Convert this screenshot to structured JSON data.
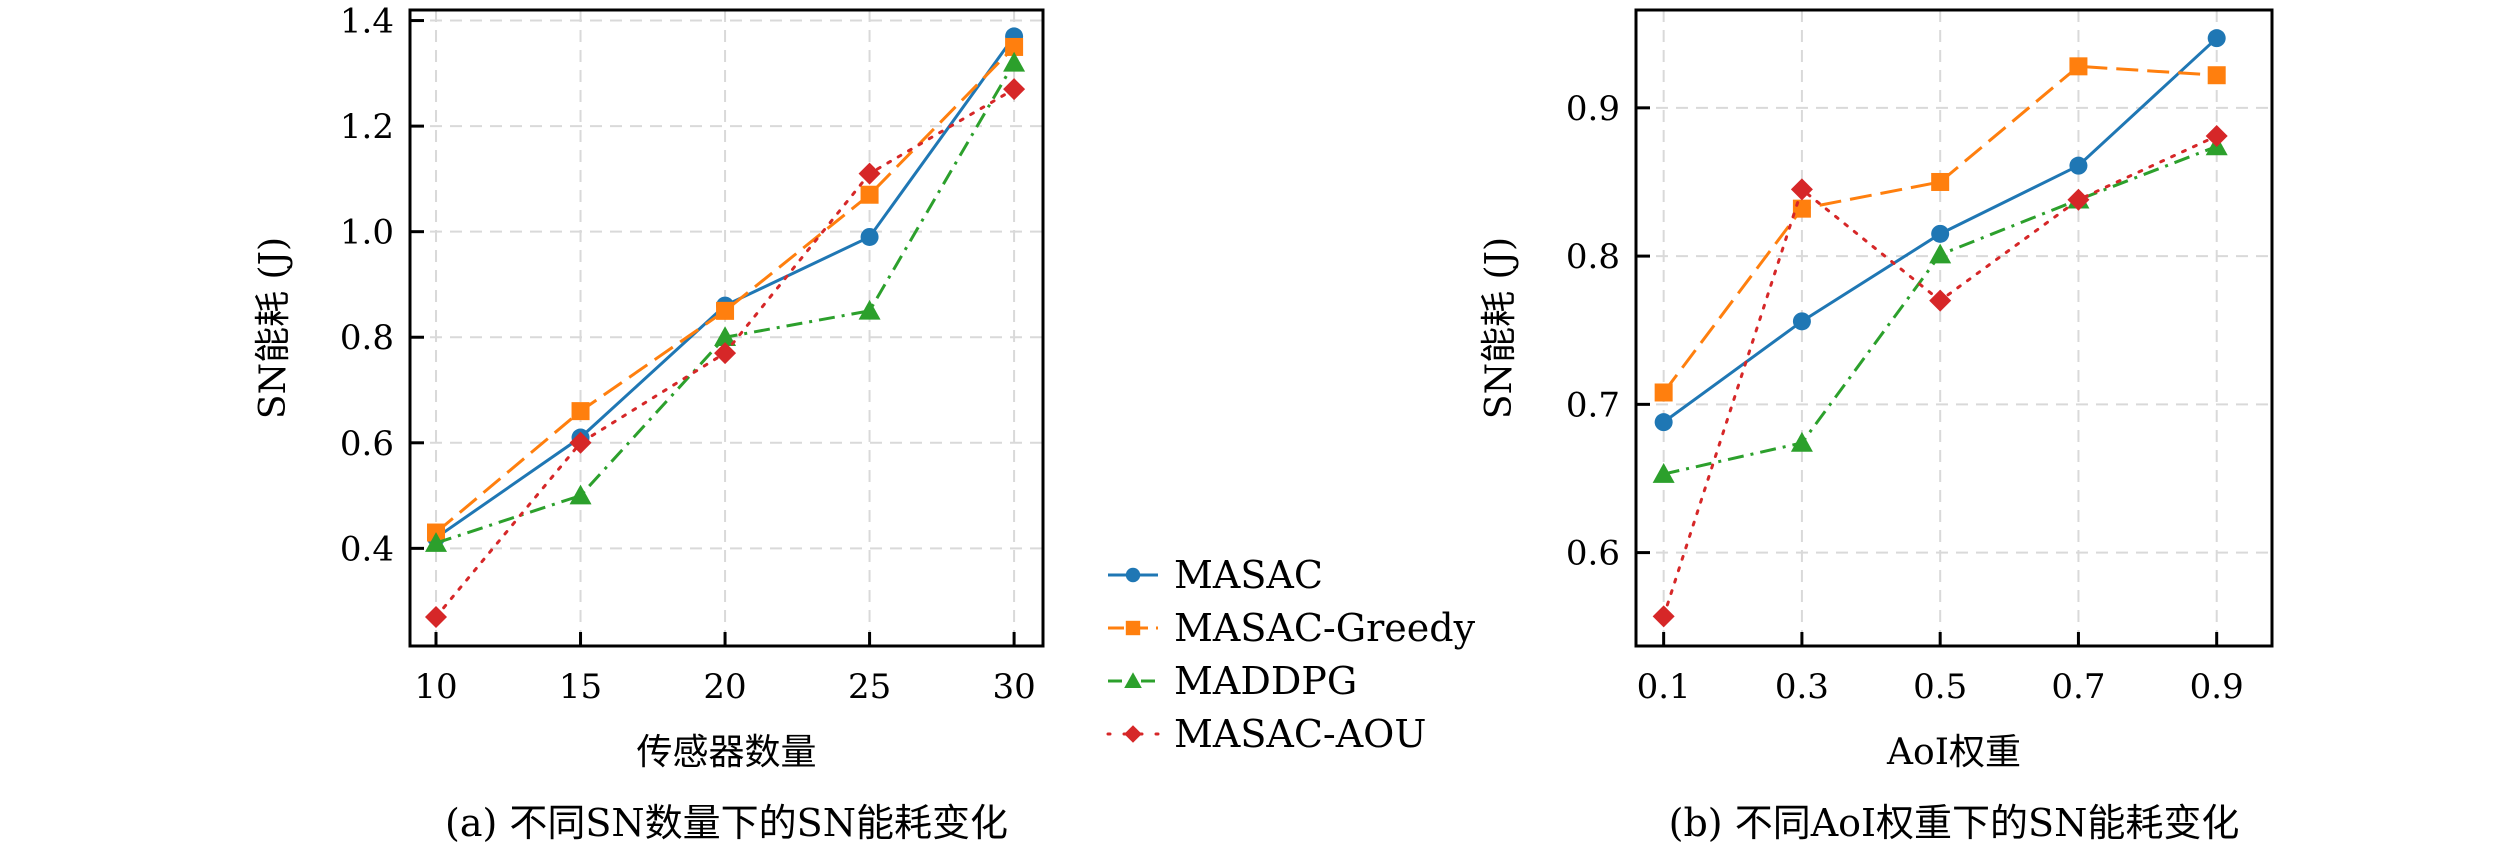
{
  "chart_data": [
    {
      "type": "line",
      "caption": "(a) 不同SN数量下的SN能耗变化",
      "title": "",
      "xlabel": "传感器数量",
      "ylabel": "SN能耗 (J)",
      "x": [
        10,
        15,
        20,
        25,
        30
      ],
      "xticks": [
        "10",
        "15",
        "20",
        "25",
        "30"
      ],
      "yticks": [
        0.4,
        0.6,
        0.8,
        1.0,
        1.2,
        1.4
      ],
      "ytick_labels": [
        "0.4",
        "0.6",
        "0.8",
        "1.0",
        "1.2",
        "1.4"
      ],
      "xlim": [
        9.1,
        31.0
      ],
      "ylim": [
        0.215,
        1.42
      ],
      "grid": true,
      "series": [
        {
          "name": "MASAC",
          "values": [
            0.42,
            0.61,
            0.86,
            0.99,
            1.37
          ]
        },
        {
          "name": "MASAC-Greedy",
          "values": [
            0.43,
            0.66,
            0.85,
            1.07,
            1.35
          ]
        },
        {
          "name": "MADDPG",
          "values": [
            0.41,
            0.5,
            0.8,
            0.85,
            1.32
          ]
        },
        {
          "name": "MASAC-AOU",
          "values": [
            0.27,
            0.6,
            0.77,
            1.11,
            1.27
          ]
        }
      ]
    },
    {
      "type": "line",
      "caption": "(b) 不同AoI权重下的SN能耗变化",
      "title": "",
      "xlabel": "AoI权重",
      "ylabel": "SN能耗 (J)",
      "x": [
        0.1,
        0.3,
        0.5,
        0.7,
        0.9
      ],
      "xticks": [
        "0.1",
        "0.3",
        "0.5",
        "0.7",
        "0.9"
      ],
      "yticks": [
        0.6,
        0.7,
        0.8,
        0.9
      ],
      "ytick_labels": [
        "0.6",
        "0.7",
        "0.8",
        "0.9"
      ],
      "xlim": [
        0.06,
        0.98
      ],
      "ylim": [
        0.537,
        0.966
      ],
      "grid": true,
      "series": [
        {
          "name": "MASAC",
          "values": [
            0.688,
            0.756,
            0.815,
            0.861,
            0.947
          ]
        },
        {
          "name": "MASAC-Greedy",
          "values": [
            0.708,
            0.832,
            0.85,
            0.928,
            0.922
          ]
        },
        {
          "name": "MADDPG",
          "values": [
            0.653,
            0.674,
            0.801,
            0.838,
            0.874
          ]
        },
        {
          "name": "MASAC-AOU",
          "values": [
            0.557,
            0.845,
            0.77,
            0.838,
            0.881
          ]
        }
      ]
    }
  ],
  "legend": {
    "placement": "center-between-plots",
    "entries": [
      {
        "name": "MASAC",
        "color": "#1f77b4",
        "marker": "circle",
        "linestyle": "solid"
      },
      {
        "name": "MASAC-Greedy",
        "color": "#ff7f0e",
        "marker": "square",
        "linestyle": "dashed"
      },
      {
        "name": "MADDPG",
        "color": "#2ca02c",
        "marker": "triangle",
        "linestyle": "dashdot"
      },
      {
        "name": "MASAC-AOU",
        "color": "#d62728",
        "marker": "diamond",
        "linestyle": "dotted"
      }
    ]
  }
}
